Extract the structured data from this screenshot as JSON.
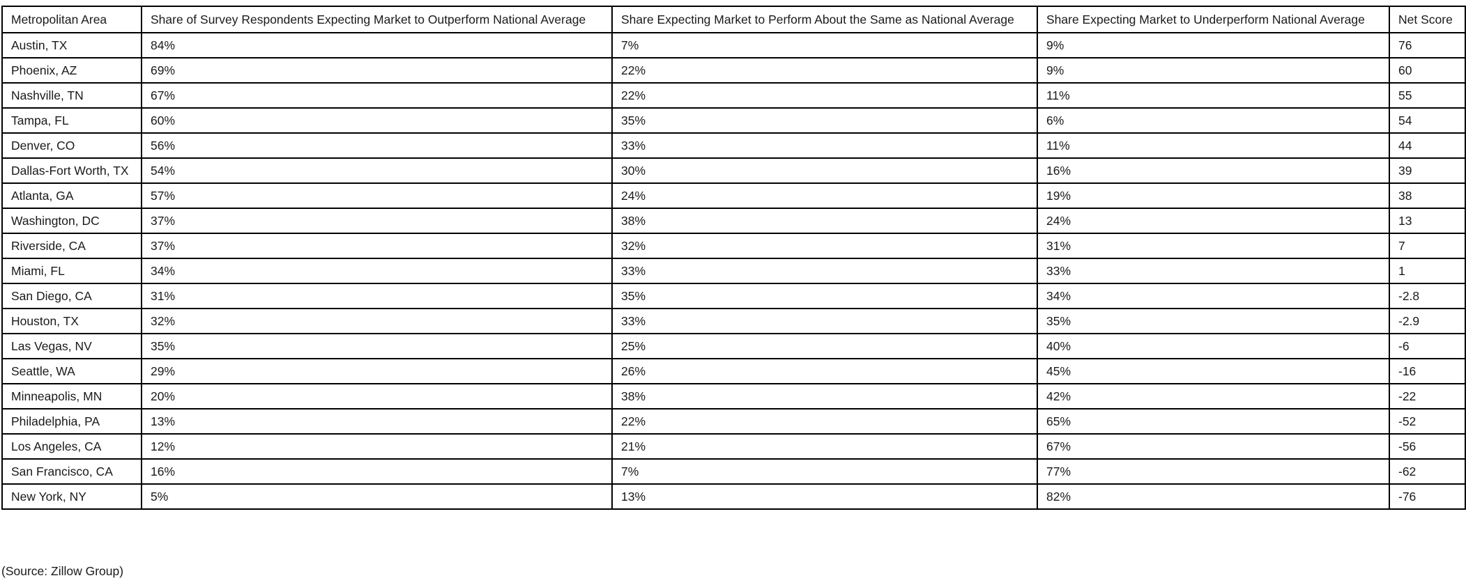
{
  "table": {
    "headers": [
      "Metropolitan Area",
      "Share of Survey Respondents Expecting Market to Outperform National Average",
      "Share Expecting Market to Perform About the Same as National Average",
      "Share Expecting Market to Underperform National Average",
      "Net Score"
    ],
    "rows": [
      [
        "Austin, TX",
        "84%",
        "7%",
        "9%",
        "76"
      ],
      [
        "Phoenix, AZ",
        "69%",
        "22%",
        "9%",
        "60"
      ],
      [
        "Nashville, TN",
        "67%",
        "22%",
        "11%",
        "55"
      ],
      [
        "Tampa, FL",
        "60%",
        "35%",
        "6%",
        "54"
      ],
      [
        "Denver, CO",
        "56%",
        "33%",
        "11%",
        "44"
      ],
      [
        "Dallas-Fort Worth, TX",
        "54%",
        "30%",
        "16%",
        "39"
      ],
      [
        "Atlanta, GA",
        "57%",
        "24%",
        "19%",
        "38"
      ],
      [
        "Washington, DC",
        "37%",
        "38%",
        "24%",
        "13"
      ],
      [
        "Riverside, CA",
        "37%",
        "32%",
        "31%",
        "7"
      ],
      [
        "Miami, FL",
        "34%",
        "33%",
        "33%",
        "1"
      ],
      [
        "San Diego, CA",
        "31%",
        "35%",
        "34%",
        "-2.8"
      ],
      [
        "Houston, TX",
        "32%",
        "33%",
        "35%",
        "-2.9"
      ],
      [
        "Las Vegas, NV",
        "35%",
        "25%",
        "40%",
        "-6"
      ],
      [
        "Seattle, WA",
        "29%",
        "26%",
        "45%",
        "-16"
      ],
      [
        "Minneapolis, MN",
        "20%",
        "38%",
        "42%",
        "-22"
      ],
      [
        "Philadelphia, PA",
        "13%",
        "22%",
        "65%",
        "-52"
      ],
      [
        "Los Angeles, CA",
        "12%",
        "21%",
        "67%",
        "-56"
      ],
      [
        "San Francisco, CA",
        "16%",
        "7%",
        "77%",
        "-62"
      ],
      [
        "New York, NY",
        "5%",
        "13%",
        "82%",
        "-76"
      ]
    ]
  },
  "source": "(Source: Zillow Group)"
}
